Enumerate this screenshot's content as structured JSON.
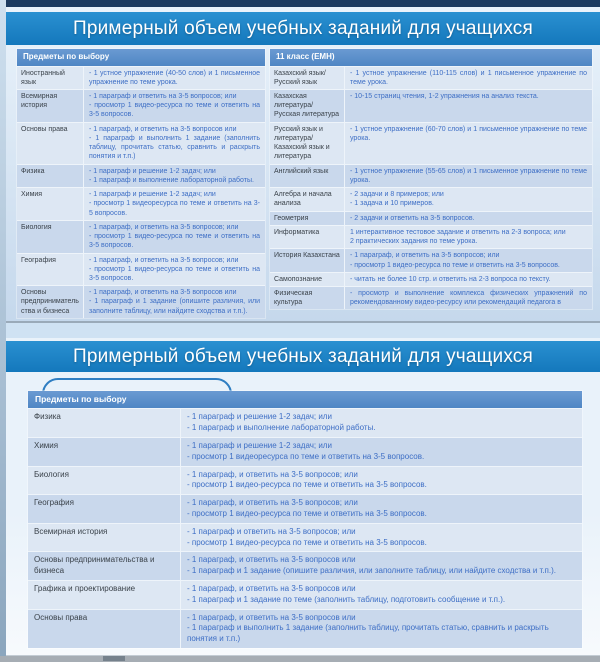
{
  "slide1": {
    "title": "Примерный объем учебных заданий для учащихся",
    "subjects": {
      "header": "Предметы по выбору",
      "rows": [
        {
          "subject": "Иностранный язык",
          "tasks": [
            "- 1 устное упражнение (40-50 слов) и  1 письменное упражнение по теме урока."
          ]
        },
        {
          "subject": "Всемирная история",
          "tasks": [
            "- 1 параграф и ответить на 3-5 вопросов; или",
            "- просмотр 1 видео-ресурса по теме и ответить на 3-5 вопросов."
          ]
        },
        {
          "subject": "Основы права",
          "tasks": [
            "- 1 параграф, и ответить на 3-5 вопросов или",
            "- 1 параграф и выполнить 1 задание (заполнить таблицу, прочитать статью, сравнить и раскрыть понятия и т.п.)"
          ]
        },
        {
          "subject": "Физика",
          "tasks": [
            "- 1 параграф и решение 1-2 задач; или",
            "- 1 параграф и выполнение лабораторной работы."
          ]
        },
        {
          "subject": "Химия",
          "tasks": [
            "- 1 параграф и решение 1-2 задач; или",
            "- просмотр 1 видеоресурса по теме и ответить на 3-5 вопросов."
          ]
        },
        {
          "subject": "Биология",
          "tasks": [
            "- 1 параграф, и ответить на 3-5 вопросов; или",
            "- просмотр 1 видео-ресурса по теме и ответить на 3-5 вопросов."
          ]
        },
        {
          "subject": "География",
          "tasks": [
            "- 1 параграф, и ответить на 3-5 вопросов; или",
            "- просмотр 1 видео-ресурса по теме и ответить на 3-5 вопросов."
          ]
        },
        {
          "subject": "Основы предпринимательства и бизнеса",
          "tasks": [
            "- 1 параграф, и ответить на 3-5 вопросов или",
            "- 1 параграф и  1 задание (опишите различия, или заполните таблицу, или найдите сходства и т.п.)."
          ]
        }
      ]
    },
    "grade11": {
      "header": "11 класс (ЕМН)",
      "rows": [
        {
          "subject": "Казахский язык/ Русский язык",
          "tasks": [
            "- 1 устное упражнение (110-115 слов) и 1 письменное упражнение по теме урока."
          ]
        },
        {
          "subject": "Казахская литература/ Русская литература",
          "tasks": [
            "- 10-15 страниц чтения, 1-2 упражнения на анализ текста."
          ]
        },
        {
          "subject": "Русский язык и литература/ Казахский язык и литература",
          "tasks": [
            "- 1 устное упражнение (60-70 слов) и  1 письменное упражнение по теме урока."
          ]
        },
        {
          "subject": "Английский язык",
          "tasks": [
            "- 1 устное упражнение (55-65 слов) и  1 письменное упражнение по теме урока."
          ]
        },
        {
          "subject": "Алгебра и начала анализа",
          "tasks": [
            "- 2 задачи и 8 примеров; или",
            "- 1 задача и 10 примеров."
          ]
        },
        {
          "subject": "Геометрия",
          "tasks": [
            "- 2 задачи и ответить на 3-5 вопросов."
          ]
        },
        {
          "subject": "Информатика",
          "tasks": [
            "1 интерактивное тестовое задание и ответить на 2-3 вопроса; или",
            "2 практических задания по теме урока."
          ]
        },
        {
          "subject": "История Казахстана",
          "tasks": [
            "- 1 параграф, и ответить на 3-5 вопросов; или",
            "- просмотр 1 видео-ресурса по теме и ответить на 3-5 вопросов."
          ]
        },
        {
          "subject": "Самопознание",
          "tasks": [
            "- читать не более 10 стр. и ответить на 2-3 вопроса по тексту."
          ]
        },
        {
          "subject": "Физическая культура",
          "tasks": [
            "- просмотр и выполнение комплекса физических упражнений по рекомендованному видео-ресурсу или рекомендаций педагога в"
          ]
        }
      ]
    }
  },
  "slide2": {
    "title": "Примерный объем учебных заданий для учащихся",
    "electives": {
      "header": "Предметы по выбору",
      "rows": [
        {
          "subject": "Физика",
          "tasks": [
            "- 1 параграф и решение 1-2 задач; или",
            "- 1 параграф и выполнение лабораторной работы."
          ]
        },
        {
          "subject": "Химия",
          "tasks": [
            "- 1 параграф и решение 1-2 задач; или",
            "- просмотр 1 видеоресурса по теме и ответить на 3-5 вопросов."
          ]
        },
        {
          "subject": "Биология",
          "tasks": [
            "- 1 параграф,  и ответить на 3-5 вопросов; или",
            "- просмотр 1 видео-ресурса по теме и ответить на 3-5 вопросов."
          ]
        },
        {
          "subject": "География",
          "tasks": [
            "- 1 параграф, и ответить на 3-5 вопросов; или",
            "- просмотр 1 видео-ресурса по теме и ответить на 3-5 вопросов."
          ]
        },
        {
          "subject": "Всемирная история",
          "tasks": [
            "- 1 параграф и ответить на 3-5 вопросов; или",
            "- просмотр 1 видео-ресурса по теме и ответить на 3-5 вопросов."
          ]
        },
        {
          "subject": "Основы предпринимательства и бизнеса",
          "tasks": [
            "- 1 параграф, и ответить на 3-5 вопросов или",
            "- 1 параграф и  1 задание (опишите различия, или заполните таблицу, или найдите сходства и т.п.)."
          ]
        },
        {
          "subject": "Графика и проектирование",
          "tasks": [
            "- 1 параграф, и ответить на 3-5 вопросов или",
            "- 1 параграф и 1 задание по теме (заполнить таблицу, подготовить сообщение и т.п.)."
          ]
        },
        {
          "subject": "Основы права",
          "tasks": [
            "- 1 параграф, и ответить на 3-5 вопросов или",
            "- 1 параграф и выполнить 1 задание (заполнить таблицу, прочитать статью, сравнить и раскрыть понятия и т.п.)"
          ]
        }
      ]
    }
  },
  "colors": {
    "accent_blue": "#1981c5",
    "header_blue": "#5b8ec9",
    "row_light": "#dde7f3",
    "row_dark": "#c9d8ec",
    "task_text": "#3d6ec5"
  }
}
